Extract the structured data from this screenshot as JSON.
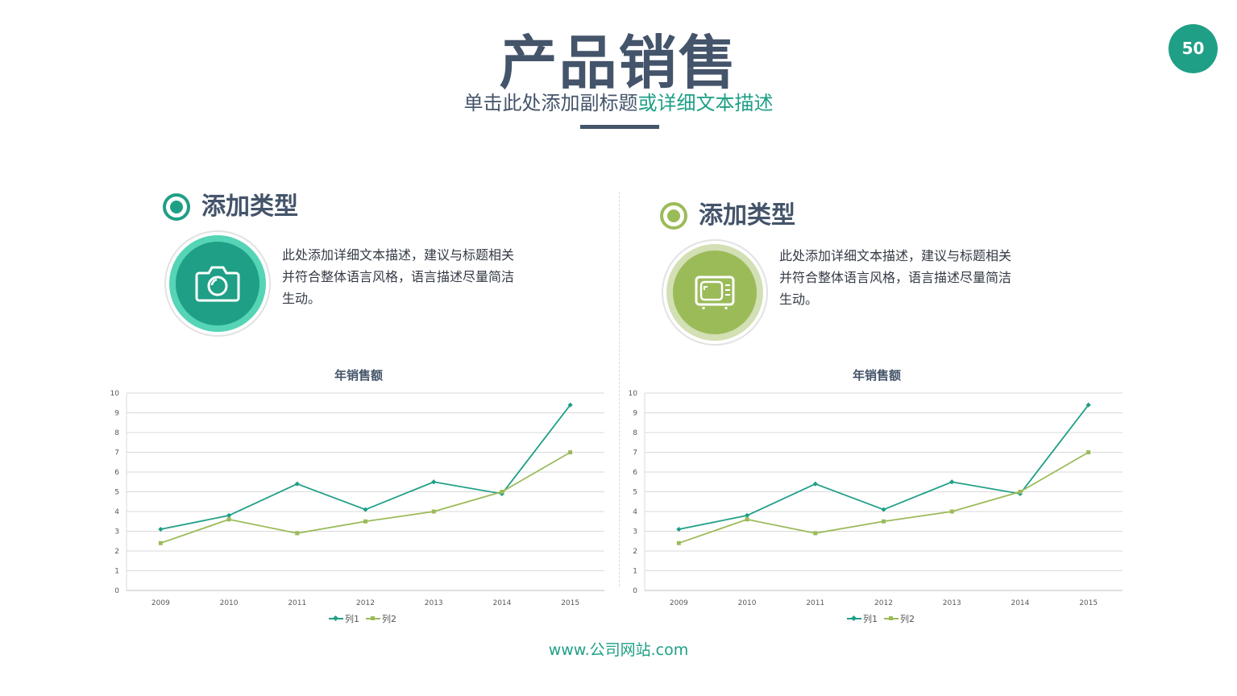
{
  "header": {
    "title": "产品销售",
    "subtitle_main": "单击此处添加副标题",
    "subtitle_highlight": "或详细文本描述",
    "page_number": "50"
  },
  "colors": {
    "dark": "#44546a",
    "teal": "#1f9f86",
    "teal_light": "#55d4b6",
    "green": "#9bbb59",
    "green_light": "#d3dfb4"
  },
  "sections": [
    {
      "title": "添加类型",
      "icon": "camera-icon",
      "description": "此处添加详细文本描述，建议与标题相关并符合整体语言风格，语言描述尽量简洁生动。"
    },
    {
      "title": "添加类型",
      "icon": "tv-icon",
      "description": "此处添加详细文本描述，建议与标题相关并符合整体语言风格，语言描述尽量简洁生动。"
    }
  ],
  "chart_data": [
    {
      "type": "line",
      "title": "年销售额",
      "categories": [
        "2009",
        "2010",
        "2011",
        "2012",
        "2013",
        "2014",
        "2015"
      ],
      "ylim": [
        0,
        10
      ],
      "yticks": [
        0,
        1,
        2,
        3,
        4,
        5,
        6,
        7,
        8,
        9,
        10
      ],
      "grid": true,
      "legend": "bottom",
      "series": [
        {
          "name": "列1",
          "values": [
            3.1,
            3.8,
            5.4,
            4.1,
            5.5,
            4.9,
            9.4
          ],
          "color": "#1f9f86"
        },
        {
          "name": "列2",
          "values": [
            2.4,
            3.6,
            2.9,
            3.5,
            4.0,
            5.0,
            7.0
          ],
          "color": "#9bbb59"
        }
      ]
    },
    {
      "type": "line",
      "title": "年销售额",
      "categories": [
        "2009",
        "2010",
        "2011",
        "2012",
        "2013",
        "2014",
        "2015"
      ],
      "ylim": [
        0,
        10
      ],
      "yticks": [
        0,
        1,
        2,
        3,
        4,
        5,
        6,
        7,
        8,
        9,
        10
      ],
      "grid": true,
      "legend": "bottom",
      "series": [
        {
          "name": "列1",
          "values": [
            3.1,
            3.8,
            5.4,
            4.1,
            5.5,
            4.9,
            9.4
          ],
          "color": "#1f9f86"
        },
        {
          "name": "列2",
          "values": [
            2.4,
            3.6,
            2.9,
            3.5,
            4.0,
            5.0,
            7.0
          ],
          "color": "#9bbb59"
        }
      ]
    }
  ],
  "footer": {
    "website": "www.公司网站.com"
  }
}
